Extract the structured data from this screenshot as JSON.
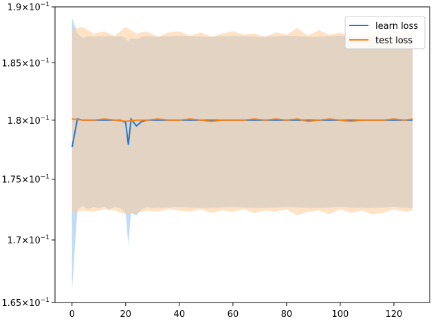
{
  "chart_data": {
    "type": "line",
    "title": "",
    "xlabel": "",
    "ylabel": "",
    "xlim": [
      -6.35,
      133.35
    ],
    "ylim": [
      0.165,
      0.19
    ],
    "y_scale": "log",
    "grid": false,
    "legend_position": "top-right",
    "x_ticks": [
      0,
      20,
      40,
      60,
      80,
      100,
      120
    ],
    "x_tick_labels": [
      "0",
      "20",
      "40",
      "60",
      "80",
      "100",
      "120"
    ],
    "y_ticks": [
      0.165,
      0.17,
      0.175,
      0.18,
      0.185,
      0.19
    ],
    "y_tick_labels": [
      {
        "mantissa": "1.65",
        "times": "×",
        "base": "10",
        "exp": "−1"
      },
      {
        "mantissa": "1.7",
        "times": "×",
        "base": "10",
        "exp": "−1"
      },
      {
        "mantissa": "1.75",
        "times": "×",
        "base": "10",
        "exp": "−1"
      },
      {
        "mantissa": "1.8",
        "times": "×",
        "base": "10",
        "exp": "−1"
      },
      {
        "mantissa": "1.85",
        "times": "×",
        "base": "10",
        "exp": "−1"
      },
      {
        "mantissa": "1.9",
        "times": "×",
        "base": "10",
        "exp": "−1"
      }
    ],
    "series": [
      {
        "name": "learn loss",
        "color": "#1f77d4",
        "band_color": "#a6cdf2",
        "x": [
          0,
          2,
          4,
          6,
          8,
          10,
          12,
          14,
          16,
          18,
          20,
          21,
          22,
          24,
          26,
          28,
          30,
          40,
          50,
          60,
          70,
          80,
          90,
          100,
          110,
          120,
          127
        ],
        "y": [
          0.1777,
          0.1801,
          0.18,
          0.18,
          0.18,
          0.18,
          0.18,
          0.18,
          0.18,
          0.18,
          0.1798,
          0.1779,
          0.1801,
          0.1795,
          0.1799,
          0.18,
          0.18,
          0.18,
          0.18,
          0.18,
          0.18,
          0.18,
          0.18,
          0.18,
          0.18,
          0.18,
          0.18
        ],
        "upper": [
          0.189,
          0.1876,
          0.1872,
          0.1874,
          0.1873,
          0.1874,
          0.1873,
          0.1874,
          0.1873,
          0.1874,
          0.1872,
          0.1869,
          0.1872,
          0.1871,
          0.1873,
          0.1874,
          0.1873,
          0.1874,
          0.1873,
          0.1874,
          0.1873,
          0.1874,
          0.1873,
          0.1874,
          0.1873,
          0.1874,
          0.1873
        ],
        "lower": [
          0.166,
          0.1725,
          0.1728,
          0.1725,
          0.1727,
          0.1726,
          0.1727,
          0.1725,
          0.1727,
          0.1726,
          0.1722,
          0.1696,
          0.1722,
          0.172,
          0.1725,
          0.1727,
          0.1726,
          0.1727,
          0.1726,
          0.1727,
          0.1726,
          0.1727,
          0.1726,
          0.1727,
          0.1726,
          0.1727,
          0.1726
        ]
      },
      {
        "name": "test loss",
        "color": "#ff7f0e",
        "band_color": "#ffcc99",
        "x": [
          0,
          4,
          8,
          12,
          16,
          20,
          24,
          28,
          32,
          36,
          40,
          44,
          48,
          52,
          56,
          60,
          64,
          68,
          72,
          76,
          80,
          84,
          88,
          92,
          96,
          100,
          104,
          108,
          112,
          116,
          120,
          124,
          127
        ],
        "y": [
          0.1801,
          0.18,
          0.18,
          0.1801,
          0.18,
          0.1799,
          0.18,
          0.18,
          0.1801,
          0.18,
          0.18,
          0.1801,
          0.18,
          0.1799,
          0.18,
          0.18,
          0.18,
          0.1801,
          0.18,
          0.1801,
          0.18,
          0.1801,
          0.1799,
          0.18,
          0.1801,
          0.18,
          0.1799,
          0.18,
          0.18,
          0.18,
          0.1801,
          0.18,
          0.1801
        ],
        "upper": [
          0.188,
          0.1882,
          0.1876,
          0.1878,
          0.1874,
          0.1882,
          0.1876,
          0.1878,
          0.1873,
          0.1877,
          0.1878,
          0.1874,
          0.1877,
          0.1873,
          0.1876,
          0.1878,
          0.1875,
          0.1876,
          0.1873,
          0.1877,
          0.1875,
          0.1881,
          0.1874,
          0.1879,
          0.1875,
          0.1877,
          0.1873,
          0.1876,
          0.1878,
          0.1876,
          0.1874,
          0.1879,
          0.1876
        ],
        "lower": [
          0.1722,
          0.1724,
          0.1723,
          0.1725,
          0.1724,
          0.1721,
          0.1722,
          0.1724,
          0.1723,
          0.1725,
          0.1724,
          0.1723,
          0.1725,
          0.1722,
          0.1724,
          0.1723,
          0.1725,
          0.1722,
          0.1724,
          0.1723,
          0.1725,
          0.172,
          0.1723,
          0.1724,
          0.1721,
          0.1725,
          0.1722,
          0.1724,
          0.1721,
          0.1722,
          0.1725,
          0.1723,
          0.1724
        ]
      }
    ]
  }
}
